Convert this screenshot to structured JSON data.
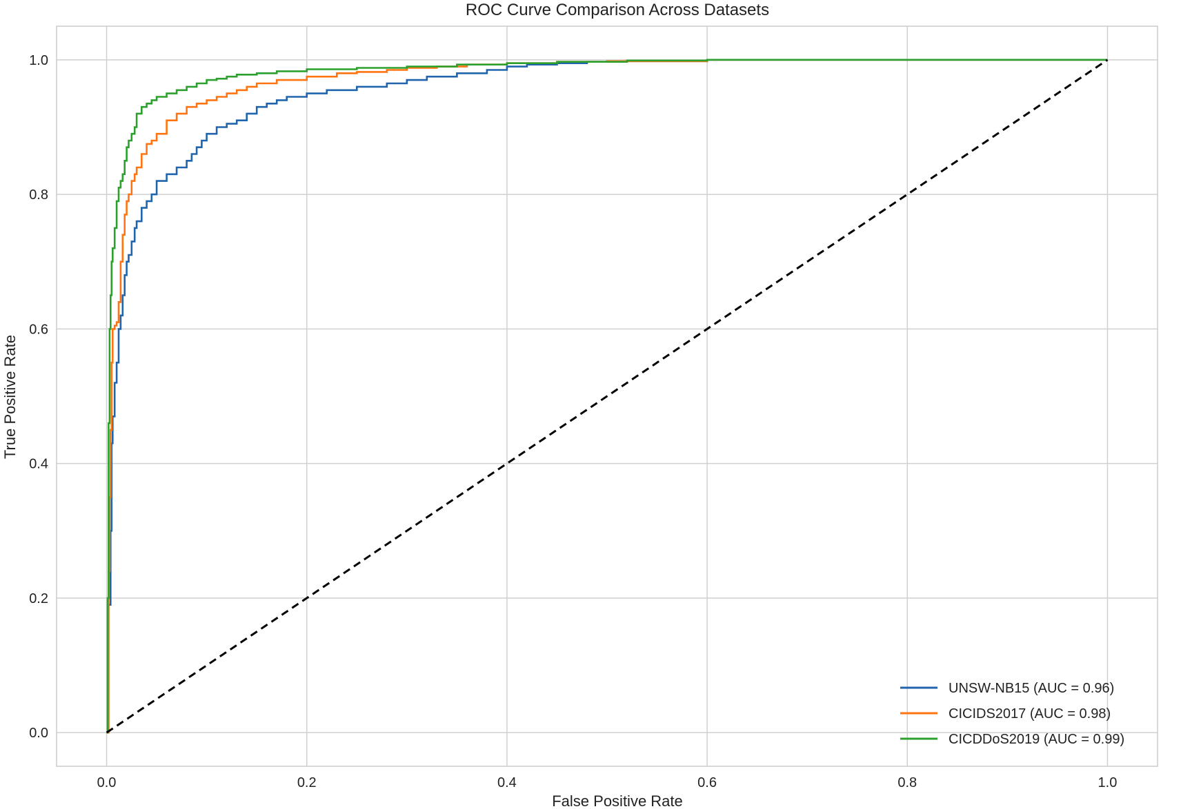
{
  "chart_data": {
    "type": "line",
    "title": "ROC Curve Comparison Across Datasets",
    "xlabel": "False Positive Rate",
    "ylabel": "True Positive Rate",
    "xlim": [
      -0.05,
      1.05
    ],
    "ylim": [
      -0.05,
      1.05
    ],
    "xticks": [
      0.0,
      0.2,
      0.4,
      0.6,
      0.8,
      1.0
    ],
    "xtick_labels": [
      "0.0",
      "0.2",
      "0.4",
      "0.6",
      "0.8",
      "1.0"
    ],
    "yticks": [
      0.0,
      0.2,
      0.4,
      0.6,
      0.8,
      1.0
    ],
    "ytick_labels": [
      "0.0",
      "0.2",
      "0.4",
      "0.6",
      "0.8",
      "1.0"
    ],
    "grid": true,
    "legend_position": "lower-right",
    "series": [
      {
        "name": "UNSW-NB15 (AUC = 0.96)",
        "color": "#1f64ad",
        "x": [
          0.0,
          0.002,
          0.004,
          0.005,
          0.006,
          0.008,
          0.01,
          0.012,
          0.014,
          0.016,
          0.018,
          0.02,
          0.022,
          0.025,
          0.028,
          0.03,
          0.035,
          0.04,
          0.045,
          0.05,
          0.06,
          0.07,
          0.08,
          0.085,
          0.09,
          0.095,
          0.1,
          0.11,
          0.12,
          0.13,
          0.14,
          0.15,
          0.16,
          0.17,
          0.18,
          0.2,
          0.22,
          0.25,
          0.28,
          0.3,
          0.32,
          0.35,
          0.38,
          0.4,
          0.42,
          0.45,
          0.48,
          0.5,
          0.6,
          0.7,
          0.8,
          1.0
        ],
        "y": [
          0.0,
          0.19,
          0.3,
          0.43,
          0.47,
          0.52,
          0.55,
          0.6,
          0.62,
          0.65,
          0.68,
          0.7,
          0.71,
          0.73,
          0.75,
          0.76,
          0.78,
          0.79,
          0.8,
          0.82,
          0.83,
          0.84,
          0.85,
          0.86,
          0.87,
          0.88,
          0.89,
          0.9,
          0.905,
          0.91,
          0.92,
          0.93,
          0.935,
          0.94,
          0.945,
          0.95,
          0.955,
          0.96,
          0.965,
          0.97,
          0.975,
          0.98,
          0.985,
          0.99,
          0.993,
          0.995,
          0.997,
          0.998,
          1.0,
          1.0,
          1.0,
          1.0
        ]
      },
      {
        "name": "CICIDS2017 (AUC = 0.98)",
        "color": "#ff7410",
        "x": [
          0.0,
          0.002,
          0.003,
          0.004,
          0.005,
          0.006,
          0.008,
          0.01,
          0.012,
          0.014,
          0.016,
          0.018,
          0.02,
          0.022,
          0.025,
          0.028,
          0.03,
          0.035,
          0.04,
          0.045,
          0.05,
          0.06,
          0.07,
          0.08,
          0.09,
          0.1,
          0.11,
          0.12,
          0.13,
          0.14,
          0.15,
          0.17,
          0.2,
          0.23,
          0.25,
          0.28,
          0.3,
          0.33,
          0.36,
          0.4,
          0.45,
          0.5,
          0.6,
          0.75,
          1.0
        ],
        "y": [
          0.0,
          0.24,
          0.35,
          0.45,
          0.55,
          0.6,
          0.605,
          0.61,
          0.64,
          0.7,
          0.74,
          0.77,
          0.79,
          0.8,
          0.82,
          0.83,
          0.84,
          0.86,
          0.875,
          0.88,
          0.89,
          0.91,
          0.92,
          0.93,
          0.935,
          0.94,
          0.945,
          0.95,
          0.955,
          0.96,
          0.965,
          0.97,
          0.975,
          0.98,
          0.982,
          0.985,
          0.988,
          0.99,
          0.993,
          0.995,
          0.997,
          0.998,
          1.0,
          1.0,
          1.0
        ]
      },
      {
        "name": "CICDDoS2019 (AUC = 0.99)",
        "color": "#2ca02c",
        "x": [
          0.0,
          0.001,
          0.002,
          0.003,
          0.004,
          0.005,
          0.006,
          0.008,
          0.01,
          0.012,
          0.014,
          0.016,
          0.018,
          0.02,
          0.022,
          0.025,
          0.028,
          0.03,
          0.035,
          0.04,
          0.045,
          0.05,
          0.06,
          0.07,
          0.08,
          0.09,
          0.1,
          0.11,
          0.12,
          0.13,
          0.15,
          0.17,
          0.2,
          0.25,
          0.3,
          0.35,
          0.4,
          0.45,
          0.52,
          0.6,
          0.7,
          1.0
        ],
        "y": [
          0.0,
          0.2,
          0.46,
          0.6,
          0.65,
          0.7,
          0.72,
          0.75,
          0.79,
          0.81,
          0.82,
          0.83,
          0.85,
          0.87,
          0.88,
          0.89,
          0.9,
          0.92,
          0.93,
          0.935,
          0.94,
          0.945,
          0.95,
          0.955,
          0.96,
          0.965,
          0.97,
          0.972,
          0.975,
          0.978,
          0.98,
          0.983,
          0.986,
          0.988,
          0.99,
          0.993,
          0.995,
          0.997,
          0.999,
          1.0,
          1.0,
          1.0
        ]
      },
      {
        "name": "",
        "color": "#000000",
        "dashed": true,
        "x": [
          0.0,
          1.0
        ],
        "y": [
          0.0,
          1.0
        ]
      }
    ]
  }
}
